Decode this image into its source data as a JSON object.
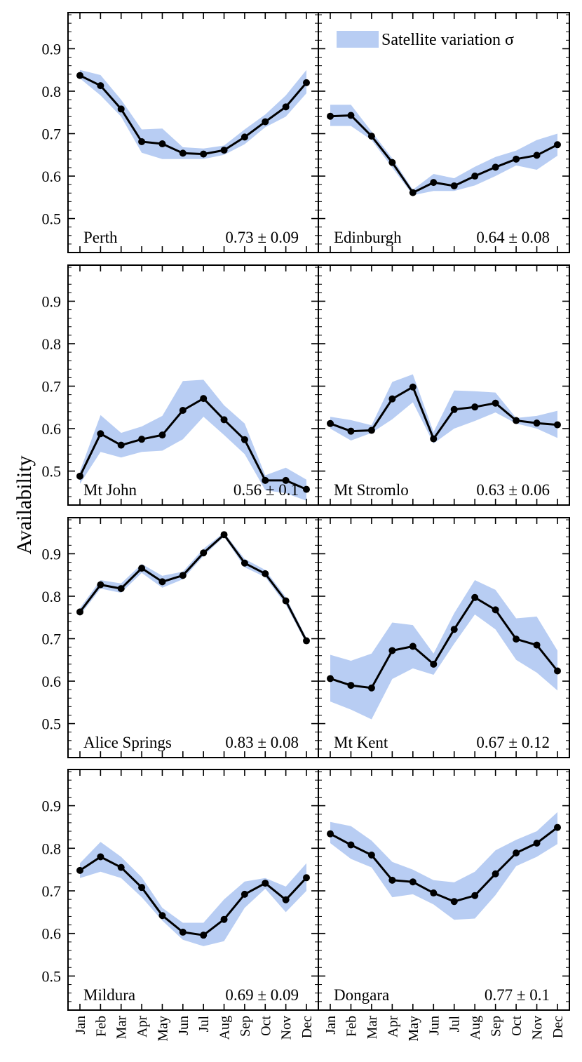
{
  "chart_data": {
    "type": "line",
    "ylabel": "Availability",
    "xlabel": "",
    "months": [
      "Jan",
      "Feb",
      "Mar",
      "Apr",
      "May",
      "Jun",
      "Jul",
      "Aug",
      "Sep",
      "Oct",
      "Nov",
      "Dec"
    ],
    "yticks": [
      "0.5",
      "0.6",
      "0.7",
      "0.8",
      "0.9"
    ],
    "ylim": [
      0.42,
      0.985
    ],
    "legend": {
      "label": "Satellite variation σ",
      "location": "top-right"
    },
    "colors": {
      "line": "#000000",
      "band": "#b8cdf3"
    },
    "panels": [
      {
        "name": "Perth",
        "stat": "0.73 ± 0.09",
        "values": [
          0.837,
          0.813,
          0.758,
          0.681,
          0.676,
          0.654,
          0.652,
          0.661,
          0.692,
          0.728,
          0.763,
          0.82
        ],
        "lower": [
          0.83,
          0.79,
          0.74,
          0.655,
          0.64,
          0.64,
          0.64,
          0.65,
          0.675,
          0.715,
          0.74,
          0.795
        ],
        "upper": [
          0.85,
          0.838,
          0.78,
          0.71,
          0.712,
          0.668,
          0.665,
          0.672,
          0.71,
          0.745,
          0.79,
          0.85
        ]
      },
      {
        "name": "Edinburgh",
        "stat": "0.64 ± 0.08",
        "values": [
          0.741,
          0.743,
          0.694,
          0.632,
          0.561,
          0.585,
          0.577,
          0.6,
          0.621,
          0.64,
          0.649,
          0.674
        ],
        "lower": [
          0.718,
          0.718,
          0.685,
          0.62,
          0.555,
          0.565,
          0.565,
          0.578,
          0.6,
          0.625,
          0.615,
          0.648
        ],
        "upper": [
          0.768,
          0.768,
          0.705,
          0.642,
          0.568,
          0.605,
          0.595,
          0.622,
          0.645,
          0.66,
          0.685,
          0.7
        ]
      },
      {
        "name": "Mt John",
        "stat": "0.56 ± 0.1",
        "values": [
          0.488,
          0.588,
          0.561,
          0.575,
          0.585,
          0.643,
          0.671,
          0.621,
          0.574,
          0.478,
          0.478,
          0.457
        ],
        "lower": [
          0.47,
          0.545,
          0.532,
          0.545,
          0.548,
          0.575,
          0.628,
          0.585,
          0.54,
          0.455,
          0.448,
          0.43
        ],
        "upper": [
          0.5,
          0.632,
          0.59,
          0.605,
          0.63,
          0.712,
          0.715,
          0.655,
          0.612,
          0.49,
          0.508,
          0.48
        ]
      },
      {
        "name": "Mt Stromlo",
        "stat": "0.63 ± 0.06",
        "values": [
          0.612,
          0.594,
          0.596,
          0.67,
          0.698,
          0.576,
          0.645,
          0.651,
          0.66,
          0.619,
          0.613,
          0.609
        ],
        "lower": [
          0.6,
          0.572,
          0.59,
          0.622,
          0.662,
          0.565,
          0.6,
          0.618,
          0.638,
          0.612,
          0.6,
          0.578
        ],
        "upper": [
          0.628,
          0.62,
          0.608,
          0.71,
          0.728,
          0.592,
          0.69,
          0.688,
          0.685,
          0.625,
          0.63,
          0.642
        ]
      },
      {
        "name": "Alice Springs",
        "stat": "0.83 ± 0.08",
        "values": [
          0.763,
          0.827,
          0.818,
          0.866,
          0.834,
          0.849,
          0.902,
          0.945,
          0.878,
          0.853,
          0.789,
          0.695
        ],
        "lower": [
          0.755,
          0.818,
          0.808,
          0.855,
          0.82,
          0.84,
          0.895,
          0.94,
          0.868,
          0.845,
          0.78,
          0.688
        ],
        "upper": [
          0.772,
          0.838,
          0.83,
          0.876,
          0.848,
          0.858,
          0.912,
          0.95,
          0.888,
          0.862,
          0.798,
          0.702
        ]
      },
      {
        "name": "Mt Kent",
        "stat": "0.67 ± 0.12",
        "values": [
          0.606,
          0.59,
          0.584,
          0.672,
          0.682,
          0.64,
          0.722,
          0.797,
          0.768,
          0.699,
          0.685,
          0.624
        ],
        "lower": [
          0.552,
          0.533,
          0.51,
          0.605,
          0.63,
          0.615,
          0.688,
          0.757,
          0.722,
          0.65,
          0.62,
          0.578
        ],
        "upper": [
          0.662,
          0.648,
          0.665,
          0.738,
          0.732,
          0.665,
          0.76,
          0.838,
          0.815,
          0.748,
          0.752,
          0.672
        ]
      },
      {
        "name": "Mildura",
        "stat": "0.69 ± 0.09",
        "values": [
          0.748,
          0.78,
          0.755,
          0.708,
          0.642,
          0.603,
          0.596,
          0.633,
          0.692,
          0.718,
          0.679,
          0.731
        ],
        "lower": [
          0.73,
          0.745,
          0.73,
          0.685,
          0.63,
          0.585,
          0.57,
          0.582,
          0.66,
          0.705,
          0.65,
          0.7
        ],
        "upper": [
          0.765,
          0.815,
          0.78,
          0.732,
          0.66,
          0.625,
          0.625,
          0.68,
          0.722,
          0.73,
          0.71,
          0.765
        ]
      },
      {
        "name": "Dongara",
        "stat": "0.77 ± 0.1",
        "values": [
          0.834,
          0.808,
          0.784,
          0.725,
          0.721,
          0.695,
          0.675,
          0.689,
          0.74,
          0.789,
          0.812,
          0.849
        ],
        "lower": [
          0.812,
          0.775,
          0.755,
          0.685,
          0.692,
          0.668,
          0.632,
          0.635,
          0.69,
          0.758,
          0.78,
          0.81
        ],
        "upper": [
          0.862,
          0.852,
          0.818,
          0.768,
          0.75,
          0.725,
          0.72,
          0.745,
          0.795,
          0.82,
          0.84,
          0.885
        ]
      }
    ]
  }
}
